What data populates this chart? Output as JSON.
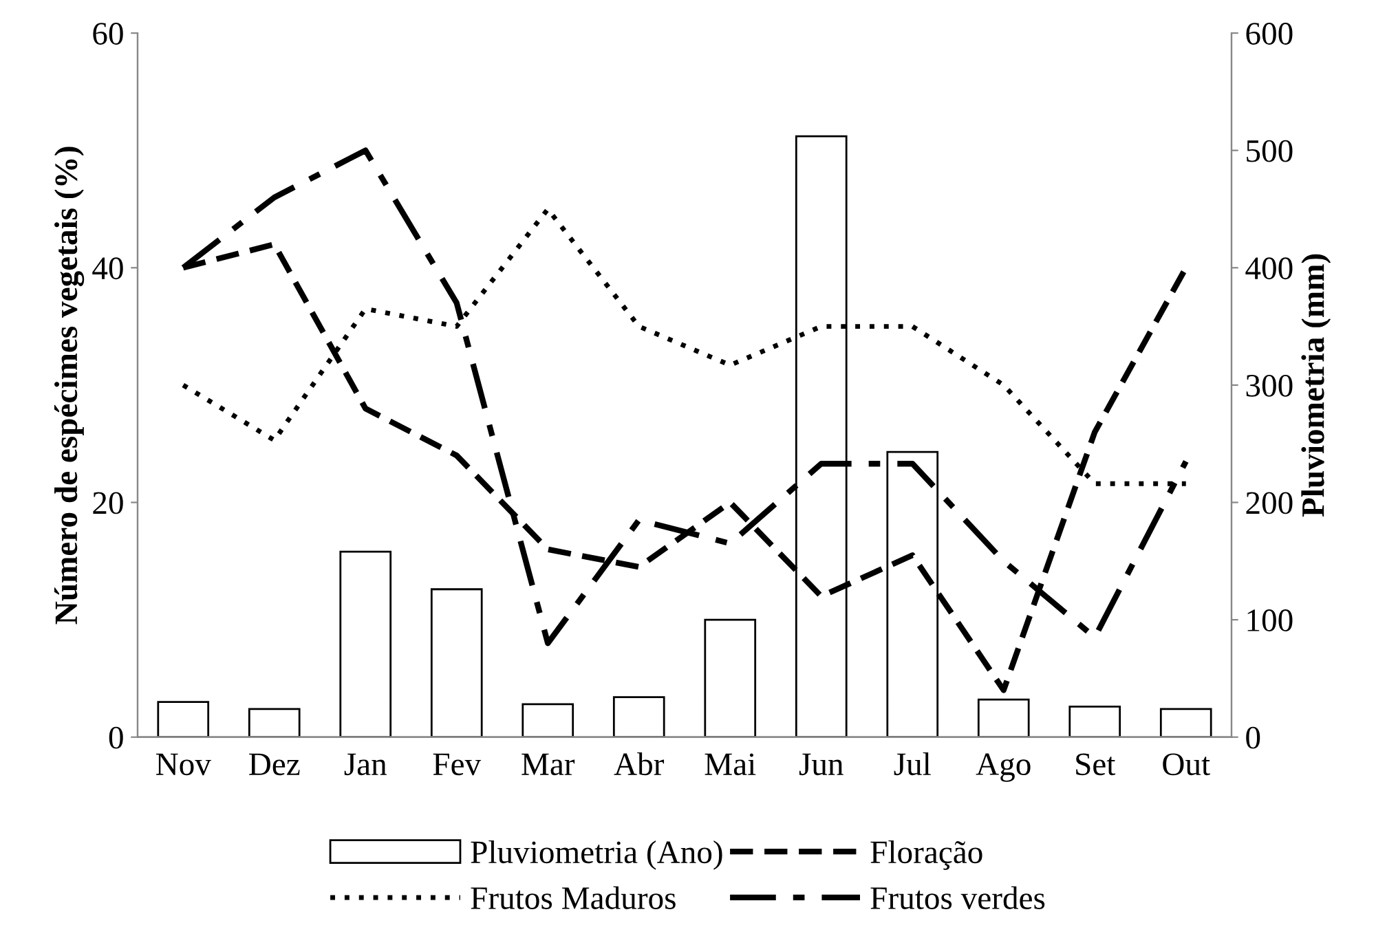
{
  "chart_data": {
    "type": "line",
    "ylabel": "Número de espécimes vegetais (%)",
    "y2label": "Pluviometria (mm)",
    "categories": [
      "Nov",
      "Dez",
      "Jan",
      "Fev",
      "Mar",
      "Abr",
      "Mai",
      "Jun",
      "Jul",
      "Ago",
      "Set",
      "Out"
    ],
    "series": [
      {
        "name": "Pluviometria (Ano)",
        "type": "bar",
        "axis": "y2",
        "color": "#ffffff",
        "values": [
          30,
          24,
          158,
          126,
          28,
          34,
          100,
          512,
          243,
          32,
          26,
          24
        ]
      },
      {
        "name": "Floração",
        "line_style": "dashed",
        "color": "#000000",
        "values": [
          40,
          42,
          28,
          24,
          16,
          14.5,
          20,
          12,
          15.5,
          4,
          26,
          40
        ]
      },
      {
        "name": "Frutos Maduros",
        "line_style": "dotted",
        "color": "#000000",
        "values": [
          30,
          25.3,
          36.5,
          35,
          45,
          35,
          31.7,
          35,
          35,
          30,
          21.6,
          21.6
        ]
      },
      {
        "name": "Frutos verdes",
        "line_style": "dashed",
        "color": "#000000",
        "values": [
          40,
          46,
          50,
          37,
          8,
          18.5,
          16.5,
          23.3,
          23.3,
          15,
          8.5,
          23.5
        ]
      }
    ],
    "ylim": [
      0,
      60
    ],
    "yticks": [
      0,
      20,
      40,
      60
    ],
    "y2lim": [
      0,
      600
    ],
    "y2ticks": [
      0,
      100,
      200,
      300,
      400,
      500,
      600
    ],
    "grid": false,
    "legend": "bottom",
    "marker": "none"
  }
}
